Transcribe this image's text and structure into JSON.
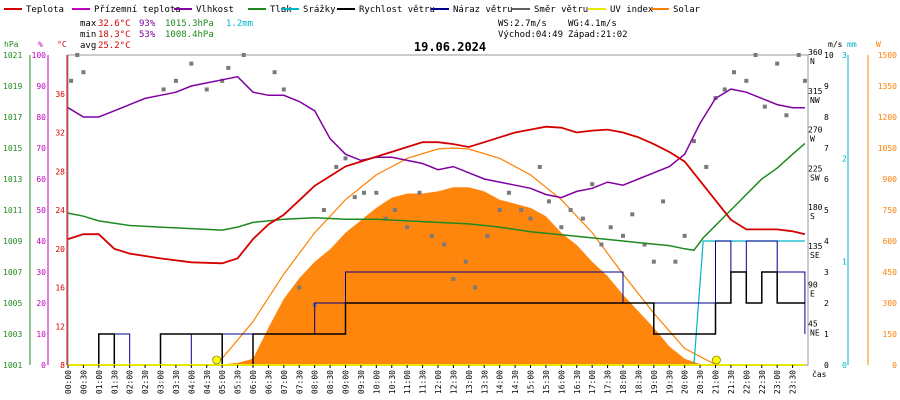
{
  "chart_data": {
    "type": "line",
    "date": "19.06.2024",
    "legend": [
      {
        "label": "Teplota",
        "color": "#d40000"
      },
      {
        "label": "Přízemní teplota",
        "color": "#c000c0"
      },
      {
        "label": "Vlhkost",
        "color": "#8000a0"
      },
      {
        "label": "Tlak",
        "color": "#1e8a1e"
      },
      {
        "label": "Srážky",
        "color": "#00b4c8"
      },
      {
        "label": "Rychlost větru",
        "color": "#000000"
      },
      {
        "label": "Náraz větru",
        "color": "#00008b"
      },
      {
        "label": "Směr větru",
        "color": "#606060"
      },
      {
        "label": "UV index",
        "color": "#e8e800"
      },
      {
        "label": "Solar",
        "color": "#ff8000"
      }
    ],
    "stats": {
      "max_label": "max",
      "min_label": "min",
      "avg_label": "avg",
      "temp_max": "32.6°C",
      "hum_max": "93%",
      "press_max": "1015.3hPa",
      "rain": "1.2mm",
      "temp_min": "18.3°C",
      "hum_min": "53%",
      "press_min": "1008.4hPa",
      "temp_avg": "25.2°C",
      "ws": "WS:2.7m/s",
      "wg": "WG:4.1m/s",
      "sunrise": "Východ:04:49",
      "sunset": "Západ:21:02"
    },
    "axes_units": {
      "press": "hPa",
      "hum": "%",
      "temp": "°C",
      "wind": "m/s",
      "rain": "mm",
      "solar": "W",
      "time": "čas"
    },
    "press_ticks": [
      "1021",
      "1019",
      "1017",
      "1015",
      "1013",
      "1011",
      "1009",
      "1007",
      "1005",
      "1003",
      "1001"
    ],
    "hum_ticks": [
      "100",
      "90",
      "80",
      "70",
      "60",
      "50",
      "40",
      "30",
      "20",
      "10",
      "0"
    ],
    "temp_ticks": [
      "36",
      "32",
      "28",
      "24",
      "20",
      "16",
      "12",
      "8"
    ],
    "dir_ticks": [
      {
        "v": 360,
        "t": "360",
        "s": "N"
      },
      {
        "v": 315,
        "t": "315",
        "s": "NW"
      },
      {
        "v": 270,
        "t": "270",
        "s": "W"
      },
      {
        "v": 225,
        "t": "225",
        "s": "SW"
      },
      {
        "v": 180,
        "t": "180",
        "s": "S"
      },
      {
        "v": 135,
        "t": "135",
        "s": "SE"
      },
      {
        "v": 90,
        "t": "90",
        "s": "E"
      },
      {
        "v": 45,
        "t": "45",
        "s": "NE"
      }
    ],
    "wind_ticks": [
      "10",
      "9",
      "8",
      "7",
      "6",
      "5",
      "4",
      "3",
      "2",
      "1",
      "0"
    ],
    "rain_ticks": [
      "3",
      "2",
      "1",
      "0"
    ],
    "solar_ticks": [
      "1500",
      "1350",
      "1200",
      "1050",
      "900",
      "750",
      "600",
      "450",
      "300",
      "150",
      "0"
    ],
    "time_ticks": [
      "00:00",
      "00:30",
      "01:00",
      "01:30",
      "02:00",
      "02:30",
      "03:00",
      "03:30",
      "04:00",
      "04:30",
      "05:00",
      "05:30",
      "06:00",
      "06:30",
      "07:00",
      "07:30",
      "08:00",
      "08:30",
      "09:00",
      "09:30",
      "10:00",
      "10:30",
      "11:00",
      "11:30",
      "12:00",
      "12:30",
      "13:00",
      "13:30",
      "14:00",
      "14:30",
      "15:00",
      "15:30",
      "16:00",
      "16:30",
      "17:00",
      "17:30",
      "18:00",
      "18:30",
      "19:00",
      "19:30",
      "20:00",
      "20:30",
      "21:00",
      "21:30",
      "22:00",
      "22:30",
      "23:00",
      "23:30"
    ],
    "temp_ylim": [
      8,
      40
    ],
    "hum_ylim": [
      0,
      100
    ],
    "press_ylim": [
      1001,
      1021
    ],
    "wind_ylim": [
      0,
      10
    ],
    "rain_ylim": [
      0,
      3
    ],
    "solar_ylim": [
      0,
      1500
    ],
    "dir_ylim": [
      0,
      360
    ],
    "temperature": [
      [
        0,
        21
      ],
      [
        0.5,
        21.5
      ],
      [
        1,
        21.5
      ],
      [
        1.5,
        20
      ],
      [
        2,
        19.5
      ],
      [
        3,
        19
      ],
      [
        4,
        18.6
      ],
      [
        5,
        18.5
      ],
      [
        5.5,
        19
      ],
      [
        6,
        21
      ],
      [
        6.5,
        22.5
      ],
      [
        7,
        23.5
      ],
      [
        7.5,
        25
      ],
      [
        8,
        26.5
      ],
      [
        8.5,
        27.5
      ],
      [
        9,
        28.5
      ],
      [
        9.5,
        29
      ],
      [
        10,
        29.5
      ],
      [
        10.5,
        30
      ],
      [
        11,
        30.5
      ],
      [
        11.5,
        31
      ],
      [
        12,
        31
      ],
      [
        12.5,
        30.8
      ],
      [
        13,
        30.5
      ],
      [
        13.5,
        31
      ],
      [
        14,
        31.5
      ],
      [
        14.5,
        32
      ],
      [
        15,
        32.3
      ],
      [
        15.5,
        32.6
      ],
      [
        16,
        32.5
      ],
      [
        16.5,
        32
      ],
      [
        17,
        32.2
      ],
      [
        17.5,
        32.3
      ],
      [
        18,
        32
      ],
      [
        18.5,
        31.5
      ],
      [
        19,
        30.8
      ],
      [
        19.5,
        30
      ],
      [
        20,
        29
      ],
      [
        20.5,
        27
      ],
      [
        21,
        25
      ],
      [
        21.5,
        23
      ],
      [
        22,
        22
      ],
      [
        22.5,
        22
      ],
      [
        23,
        22
      ],
      [
        23.5,
        21.8
      ],
      [
        23.9,
        21.5
      ]
    ],
    "humidity": [
      [
        0,
        83
      ],
      [
        0.5,
        80
      ],
      [
        1,
        80
      ],
      [
        1.5,
        82
      ],
      [
        2,
        84
      ],
      [
        2.5,
        86
      ],
      [
        3,
        87
      ],
      [
        3.5,
        88
      ],
      [
        4,
        90
      ],
      [
        4.5,
        91
      ],
      [
        5,
        92
      ],
      [
        5.5,
        93
      ],
      [
        6,
        88
      ],
      [
        6.5,
        87
      ],
      [
        7,
        87
      ],
      [
        7.5,
        85
      ],
      [
        8,
        82
      ],
      [
        8.5,
        73
      ],
      [
        9,
        68
      ],
      [
        9.5,
        66
      ],
      [
        10,
        67
      ],
      [
        10.5,
        67
      ],
      [
        11,
        66
      ],
      [
        11.5,
        65
      ],
      [
        12,
        63
      ],
      [
        12.5,
        64
      ],
      [
        13,
        62
      ],
      [
        13.5,
        60
      ],
      [
        14,
        59
      ],
      [
        14.5,
        58
      ],
      [
        15,
        57
      ],
      [
        15.5,
        55
      ],
      [
        16,
        54
      ],
      [
        16.5,
        56
      ],
      [
        17,
        57
      ],
      [
        17.5,
        59
      ],
      [
        18,
        58
      ],
      [
        18.5,
        60
      ],
      [
        19,
        62
      ],
      [
        19.5,
        64
      ],
      [
        20,
        68
      ],
      [
        20.5,
        78
      ],
      [
        21,
        86
      ],
      [
        21.5,
        89
      ],
      [
        22,
        88
      ],
      [
        22.5,
        86
      ],
      [
        23,
        84
      ],
      [
        23.5,
        83
      ],
      [
        23.9,
        83
      ]
    ],
    "pressure": [
      [
        0,
        1010.8
      ],
      [
        0.5,
        1010.6
      ],
      [
        1,
        1010.3
      ],
      [
        2,
        1010
      ],
      [
        3,
        1009.9
      ],
      [
        4,
        1009.8
      ],
      [
        5,
        1009.7
      ],
      [
        5.5,
        1009.9
      ],
      [
        6,
        1010.2
      ],
      [
        6.5,
        1010.3
      ],
      [
        7,
        1010.4
      ],
      [
        8,
        1010.5
      ],
      [
        9,
        1010.4
      ],
      [
        10,
        1010.4
      ],
      [
        11,
        1010.3
      ],
      [
        12,
        1010.2
      ],
      [
        13,
        1010.1
      ],
      [
        14,
        1009.9
      ],
      [
        15,
        1009.6
      ],
      [
        16,
        1009.4
      ],
      [
        17,
        1009.2
      ],
      [
        18,
        1009
      ],
      [
        18.5,
        1008.9
      ],
      [
        19,
        1008.8
      ],
      [
        19.5,
        1008.7
      ],
      [
        20,
        1008.5
      ],
      [
        20.3,
        1008.4
      ],
      [
        20.6,
        1009.2
      ],
      [
        21,
        1010
      ],
      [
        21.5,
        1011
      ],
      [
        22,
        1012
      ],
      [
        22.5,
        1013
      ],
      [
        23,
        1013.7
      ],
      [
        23.5,
        1014.6
      ],
      [
        23.9,
        1015.3
      ]
    ],
    "rain": [
      [
        0,
        0
      ],
      [
        20.3,
        0
      ],
      [
        20.6,
        1.2
      ],
      [
        23.9,
        1.2
      ]
    ],
    "wind_speed": [
      [
        0,
        0
      ],
      [
        1,
        1
      ],
      [
        1.5,
        0
      ],
      [
        3,
        1
      ],
      [
        5,
        0
      ],
      [
        6,
        1
      ],
      [
        8,
        1
      ],
      [
        9,
        2
      ],
      [
        10,
        2
      ],
      [
        11,
        2
      ],
      [
        12,
        2
      ],
      [
        13,
        2
      ],
      [
        14,
        2
      ],
      [
        15,
        2
      ],
      [
        16,
        2
      ],
      [
        17,
        2
      ],
      [
        18,
        2
      ],
      [
        19,
        1
      ],
      [
        20,
        1
      ],
      [
        21,
        2
      ],
      [
        21.5,
        3
      ],
      [
        22,
        2
      ],
      [
        22.5,
        3
      ],
      [
        23,
        2
      ],
      [
        23.9,
        2
      ]
    ],
    "wind_gust": [
      [
        0,
        0
      ],
      [
        1,
        1
      ],
      [
        2,
        0
      ],
      [
        3,
        1
      ],
      [
        4,
        0
      ],
      [
        5,
        1
      ],
      [
        6,
        1
      ],
      [
        7,
        1
      ],
      [
        8,
        2
      ],
      [
        9,
        3
      ],
      [
        10,
        3
      ],
      [
        11,
        3
      ],
      [
        12,
        3
      ],
      [
        13,
        3
      ],
      [
        14,
        3
      ],
      [
        15,
        3
      ],
      [
        16,
        3
      ],
      [
        17,
        3
      ],
      [
        18,
        2
      ],
      [
        19,
        2
      ],
      [
        20,
        2
      ],
      [
        21,
        4
      ],
      [
        21.5,
        3
      ],
      [
        22,
        4
      ],
      [
        22.5,
        4
      ],
      [
        23,
        3
      ],
      [
        23.9,
        1
      ]
    ],
    "solar": [
      [
        0,
        0
      ],
      [
        4.82,
        0
      ],
      [
        5.5,
        10
      ],
      [
        6,
        30
      ],
      [
        6.5,
        180
      ],
      [
        7,
        320
      ],
      [
        7.5,
        420
      ],
      [
        8,
        500
      ],
      [
        8.5,
        560
      ],
      [
        9,
        640
      ],
      [
        9.5,
        700
      ],
      [
        10,
        760
      ],
      [
        10.5,
        810
      ],
      [
        11,
        830
      ],
      [
        11.5,
        830
      ],
      [
        12,
        840
      ],
      [
        12.5,
        860
      ],
      [
        13,
        860
      ],
      [
        13.5,
        840
      ],
      [
        14,
        800
      ],
      [
        14.5,
        780
      ],
      [
        15,
        760
      ],
      [
        15.5,
        720
      ],
      [
        16,
        640
      ],
      [
        16.5,
        580
      ],
      [
        17,
        500
      ],
      [
        17.5,
        430
      ],
      [
        18,
        340
      ],
      [
        18.5,
        260
      ],
      [
        19,
        180
      ],
      [
        19.5,
        90
      ],
      [
        20,
        30
      ],
      [
        20.5,
        5
      ],
      [
        21.03,
        0
      ],
      [
        23.9,
        0
      ]
    ],
    "solar_clear": [
      [
        4.82,
        0
      ],
      [
        6,
        210
      ],
      [
        7,
        440
      ],
      [
        8,
        640
      ],
      [
        9,
        800
      ],
      [
        10,
        920
      ],
      [
        11,
        1000
      ],
      [
        12,
        1045
      ],
      [
        12.5,
        1050
      ],
      [
        13,
        1045
      ],
      [
        14,
        1000
      ],
      [
        15,
        920
      ],
      [
        16,
        800
      ],
      [
        17,
        640
      ],
      [
        18,
        440
      ],
      [
        19,
        250
      ],
      [
        20,
        80
      ],
      [
        21.03,
        0
      ]
    ],
    "uv": [
      [
        0,
        0
      ],
      [
        23.9,
        0
      ]
    ],
    "sun_markers": [
      4.82,
      21.03
    ],
    "wind_dir": [
      [
        0.1,
        330
      ],
      [
        0.3,
        360
      ],
      [
        0.5,
        340
      ],
      [
        3.1,
        320
      ],
      [
        3.5,
        330
      ],
      [
        4,
        350
      ],
      [
        4.5,
        320
      ],
      [
        5,
        330
      ],
      [
        5.2,
        345
      ],
      [
        5.7,
        360
      ],
      [
        6.7,
        340
      ],
      [
        7,
        320
      ],
      [
        7.5,
        90
      ],
      [
        8,
        70
      ],
      [
        8.3,
        180
      ],
      [
        8.7,
        230
      ],
      [
        9,
        240
      ],
      [
        9.3,
        195
      ],
      [
        9.6,
        200
      ],
      [
        10,
        200
      ],
      [
        10.3,
        170
      ],
      [
        10.6,
        180
      ],
      [
        11,
        160
      ],
      [
        11.4,
        200
      ],
      [
        11.8,
        150
      ],
      [
        12.2,
        140
      ],
      [
        12.5,
        100
      ],
      [
        12.9,
        120
      ],
      [
        13.2,
        90
      ],
      [
        13.6,
        150
      ],
      [
        14,
        180
      ],
      [
        14.3,
        200
      ],
      [
        14.7,
        180
      ],
      [
        15,
        170
      ],
      [
        15.3,
        230
      ],
      [
        15.6,
        190
      ],
      [
        16,
        160
      ],
      [
        16.3,
        180
      ],
      [
        16.7,
        170
      ],
      [
        17,
        210
      ],
      [
        17.3,
        140
      ],
      [
        17.6,
        160
      ],
      [
        18,
        150
      ],
      [
        18.3,
        175
      ],
      [
        18.7,
        140
      ],
      [
        19,
        120
      ],
      [
        19.3,
        190
      ],
      [
        19.7,
        120
      ],
      [
        20,
        150
      ],
      [
        20.3,
        260
      ],
      [
        20.7,
        230
      ],
      [
        21,
        310
      ],
      [
        21.3,
        320
      ],
      [
        21.6,
        340
      ],
      [
        22,
        330
      ],
      [
        22.3,
        360
      ],
      [
        22.6,
        300
      ],
      [
        23,
        350
      ],
      [
        23.3,
        290
      ],
      [
        23.7,
        360
      ],
      [
        23.9,
        330
      ]
    ]
  }
}
